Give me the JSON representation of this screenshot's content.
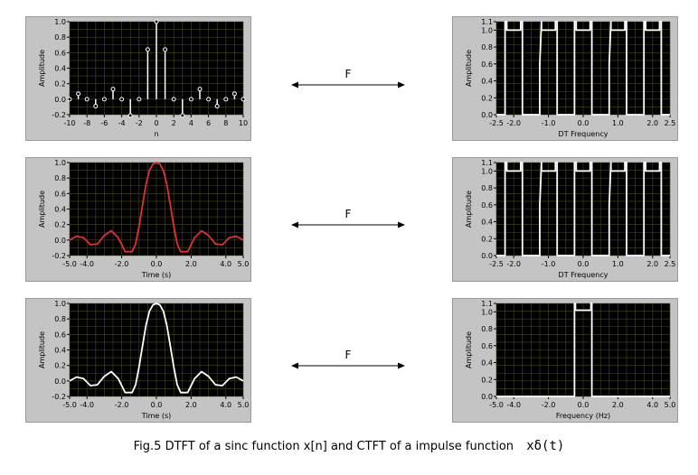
{
  "colors": {
    "plot_bg": "#000000",
    "grid": "#4a4a1a",
    "panel_bg": "#c4c4c4",
    "trace_white": "#ffffff",
    "trace_red": "#e03030"
  },
  "arrows": [
    {
      "label": "F"
    },
    {
      "label": "F"
    },
    {
      "label": "F"
    }
  ],
  "caption": {
    "text": "Fig.5 DTFT of a sinc function x[n] and CTFT of a impulse function",
    "symbol": "xδ(t)"
  },
  "chart_data": [
    {
      "id": "dt-sinc",
      "type": "stem",
      "ylabel": "Amplitude",
      "xlabel": "n",
      "xlim": [
        -10,
        10
      ],
      "ylim": [
        -0.2,
        1.0
      ],
      "xticks": [
        "-10",
        "-8",
        "-6",
        "-4",
        "-2",
        "0",
        "2",
        "4",
        "6",
        "8",
        "10"
      ],
      "yticks": [
        "-0.2",
        "0.0",
        "0.2",
        "0.4",
        "0.6",
        "0.8",
        "1.0"
      ],
      "x": [
        -10,
        -9,
        -8,
        -7,
        -6,
        -5,
        -4,
        -3,
        -2,
        -1,
        0,
        1,
        2,
        3,
        4,
        5,
        6,
        7,
        8,
        9,
        10
      ],
      "y": [
        0.0,
        0.07,
        0.0,
        -0.09,
        0.0,
        0.13,
        0.0,
        -0.21,
        0.0,
        0.64,
        1.0,
        0.64,
        0.0,
        -0.21,
        0.0,
        0.13,
        0.0,
        -0.09,
        0.0,
        0.07,
        0.0
      ],
      "color": "#ffffff"
    },
    {
      "id": "dtft-periodic-1",
      "type": "line",
      "ylabel": "Amplitude",
      "xlabel": "DT Frequency",
      "xlim": [
        -2.5,
        2.5
      ],
      "ylim": [
        0.0,
        1.1
      ],
      "xticks": [
        "-2.5",
        "-2.0",
        "-1.0",
        "0.0",
        "1.0",
        "2.0",
        "2.5"
      ],
      "yticks": [
        "0.0",
        "0.2",
        "0.4",
        "0.6",
        "0.8",
        "1.0",
        "1.1"
      ],
      "x": [
        -2.5,
        -2.25,
        -2.25,
        -2.2,
        -2.2,
        -1.8,
        -1.8,
        -1.75,
        -1.75,
        -1.25,
        -1.25,
        -1.2,
        -1.2,
        -0.8,
        -0.8,
        -0.75,
        -0.75,
        -0.25,
        -0.25,
        -0.2,
        -0.2,
        0.2,
        0.2,
        0.25,
        0.25,
        0.75,
        0.75,
        0.8,
        0.8,
        1.2,
        1.2,
        1.25,
        1.25,
        1.75,
        1.75,
        1.8,
        1.8,
        2.2,
        2.2,
        2.25,
        2.25,
        2.5
      ],
      "y": [
        0,
        0,
        1.1,
        1.1,
        1.0,
        1.0,
        1.1,
        1.1,
        0,
        0,
        0.6,
        1.1,
        1.0,
        1.0,
        1.1,
        1.1,
        0,
        0,
        1.1,
        1.1,
        1.0,
        1.0,
        1.1,
        1.1,
        0,
        0,
        0.6,
        1.1,
        1.0,
        1.0,
        1.1,
        1.1,
        0,
        0,
        1.1,
        1.1,
        1.0,
        1.0,
        1.1,
        1.1,
        0,
        0
      ],
      "color": "#ffffff"
    },
    {
      "id": "ct-sinc-red",
      "type": "line",
      "ylabel": "Amplitude",
      "xlabel": "Time (s)",
      "xlim": [
        -5.0,
        5.0
      ],
      "ylim": [
        -0.2,
        1.0
      ],
      "xticks": [
        "-5.0",
        "-4.0",
        "-2.0",
        "0.0",
        "2.0",
        "4.0",
        "5.0"
      ],
      "yticks": [
        "-0.2",
        "0.0",
        "0.2",
        "0.4",
        "0.6",
        "0.8",
        "1.0"
      ],
      "x": [
        -5.0,
        -4.6,
        -4.2,
        -3.8,
        -3.4,
        -3.0,
        -2.6,
        -2.2,
        -1.8,
        -1.4,
        -1.2,
        -1.0,
        -0.8,
        -0.6,
        -0.4,
        -0.2,
        0.0,
        0.2,
        0.4,
        0.6,
        0.8,
        1.0,
        1.2,
        1.4,
        1.8,
        2.2,
        2.6,
        3.0,
        3.4,
        3.8,
        4.2,
        4.6,
        5.0
      ],
      "y": [
        0.0,
        0.05,
        0.03,
        -0.06,
        -0.05,
        0.06,
        0.12,
        0.03,
        -0.15,
        -0.15,
        -0.05,
        0.18,
        0.45,
        0.72,
        0.9,
        0.98,
        1.0,
        0.98,
        0.9,
        0.72,
        0.45,
        0.18,
        -0.05,
        -0.15,
        -0.15,
        0.03,
        0.12,
        0.06,
        -0.05,
        -0.06,
        0.03,
        0.05,
        0.0
      ],
      "color": "#e03030"
    },
    {
      "id": "dtft-periodic-2",
      "type": "line",
      "ylabel": "Amplitude",
      "xlabel": "DT Frequency",
      "xlim": [
        -2.5,
        2.5
      ],
      "ylim": [
        0.0,
        1.1
      ],
      "xticks": [
        "-2.5",
        "-2.0",
        "-1.0",
        "0.0",
        "1.0",
        "2.0",
        "2.5"
      ],
      "yticks": [
        "0.0",
        "0.2",
        "0.4",
        "0.6",
        "0.8",
        "1.0",
        "1.1"
      ],
      "x": [
        -2.5,
        -2.25,
        -2.25,
        -2.2,
        -2.2,
        -1.8,
        -1.8,
        -1.75,
        -1.75,
        -1.25,
        -1.25,
        -1.2,
        -1.2,
        -0.8,
        -0.8,
        -0.75,
        -0.75,
        -0.25,
        -0.25,
        -0.2,
        -0.2,
        0.2,
        0.2,
        0.25,
        0.25,
        0.75,
        0.75,
        0.8,
        0.8,
        1.2,
        1.2,
        1.25,
        1.25,
        1.75,
        1.75,
        1.8,
        1.8,
        2.2,
        2.2,
        2.25,
        2.25,
        2.5
      ],
      "y": [
        0,
        0,
        1.1,
        1.1,
        1.0,
        1.0,
        1.1,
        1.1,
        0,
        0,
        0.6,
        1.1,
        1.0,
        1.0,
        1.1,
        1.1,
        0,
        0,
        1.1,
        1.1,
        1.0,
        1.0,
        1.1,
        1.1,
        0,
        0,
        0.6,
        1.1,
        1.0,
        1.0,
        1.1,
        1.1,
        0,
        0,
        1.1,
        1.1,
        1.0,
        1.0,
        1.1,
        1.1,
        0,
        0
      ],
      "color": "#ffffff"
    },
    {
      "id": "ct-sinc-white",
      "type": "line",
      "ylabel": "Amplitude",
      "xlabel": "Time (s)",
      "xlim": [
        -5.0,
        5.0
      ],
      "ylim": [
        -0.2,
        1.0
      ],
      "xticks": [
        "-5.0",
        "-4.0",
        "-2.0",
        "0.0",
        "2.0",
        "4.0",
        "5.0"
      ],
      "yticks": [
        "-0.2",
        "0.0",
        "0.2",
        "0.4",
        "0.6",
        "0.8",
        "1.0"
      ],
      "x": [
        -5.0,
        -4.6,
        -4.2,
        -3.8,
        -3.4,
        -3.0,
        -2.6,
        -2.2,
        -1.8,
        -1.4,
        -1.2,
        -1.0,
        -0.8,
        -0.6,
        -0.4,
        -0.2,
        0.0,
        0.2,
        0.4,
        0.6,
        0.8,
        1.0,
        1.2,
        1.4,
        1.8,
        2.2,
        2.6,
        3.0,
        3.4,
        3.8,
        4.2,
        4.6,
        5.0
      ],
      "y": [
        0.0,
        0.05,
        0.03,
        -0.06,
        -0.05,
        0.06,
        0.12,
        0.03,
        -0.15,
        -0.15,
        -0.05,
        0.18,
        0.45,
        0.72,
        0.9,
        0.98,
        1.0,
        0.98,
        0.9,
        0.72,
        0.45,
        0.18,
        -0.05,
        -0.15,
        -0.15,
        0.03,
        0.12,
        0.06,
        -0.05,
        -0.06,
        0.03,
        0.05,
        0.0
      ],
      "color": "#ffffff"
    },
    {
      "id": "ctft-rect",
      "type": "line",
      "ylabel": "Amplitude",
      "xlabel": "Frequency (Hz)",
      "xlim": [
        -5.0,
        5.0
      ],
      "ylim": [
        0.0,
        1.1
      ],
      "xticks": [
        "-5.0",
        "-4.0",
        "-2.0",
        "0.0",
        "2.0",
        "4.0",
        "5.0"
      ],
      "yticks": [
        "0.0",
        "0.2",
        "0.4",
        "0.6",
        "0.8",
        "1.0",
        "1.1"
      ],
      "x": [
        -5.0,
        -0.5,
        -0.5,
        -0.45,
        -0.45,
        0.45,
        0.45,
        0.5,
        0.5,
        5.0
      ],
      "y": [
        0,
        0,
        1.1,
        1.1,
        1.02,
        1.02,
        1.1,
        1.1,
        0,
        0
      ],
      "color": "#ffffff"
    }
  ]
}
